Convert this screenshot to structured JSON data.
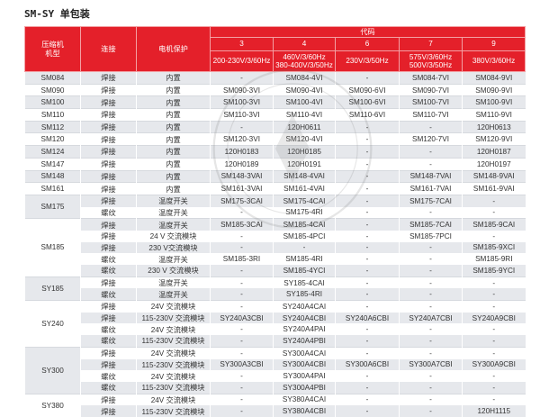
{
  "title": "SM-SY 单包装",
  "header": {
    "model": "压缩机\n机型",
    "connection": "连接",
    "motor_protection": "电机保护",
    "code": "代码",
    "code_columns": [
      {
        "code": "3",
        "voltage": "200-230V/3/60Hz"
      },
      {
        "code": "4",
        "voltage": "460V/3/60Hz\n380-400V/3/50Hz"
      },
      {
        "code": "6",
        "voltage": "230V/3/50Hz"
      },
      {
        "code": "7",
        "voltage": "575V/3/60Hz\n500V/3/50Hz"
      },
      {
        "code": "9",
        "voltage": "380V/3/60Hz"
      }
    ]
  },
  "groups": [
    {
      "model": "SM084",
      "rows": [
        [
          "焊接",
          "内置",
          "-",
          "SM084-4VI",
          "-",
          "SM084-7VI",
          "SM084-9VI"
        ]
      ]
    },
    {
      "model": "SM090",
      "rows": [
        [
          "焊接",
          "内置",
          "SM090-3VI",
          "SM090-4VI",
          "SM090-6VI",
          "SM090-7VI",
          "SM090-9VI"
        ]
      ]
    },
    {
      "model": "SM100",
      "rows": [
        [
          "焊接",
          "内置",
          "SM100-3VI",
          "SM100-4VI",
          "SM100-6VI",
          "SM100-7VI",
          "SM100-9VI"
        ]
      ]
    },
    {
      "model": "SM110",
      "rows": [
        [
          "焊接",
          "内置",
          "SM110-3VI",
          "SM110-4VI",
          "SM110-6VI",
          "SM110-7VI",
          "SM110-9VI"
        ]
      ]
    },
    {
      "model": "SM112",
      "rows": [
        [
          "焊接",
          "内置",
          "-",
          "120H0611",
          "-",
          "-",
          "120H0613"
        ]
      ]
    },
    {
      "model": "SM120",
      "rows": [
        [
          "焊接",
          "内置",
          "SM120-3VI",
          "SM120-4VI",
          "-",
          "SM120-7VI",
          "SM120-9VI"
        ]
      ]
    },
    {
      "model": "SM124",
      "rows": [
        [
          "焊接",
          "内置",
          "120H0183",
          "120H0185",
          "-",
          "-",
          "120H0187"
        ]
      ]
    },
    {
      "model": "SM147",
      "rows": [
        [
          "焊接",
          "内置",
          "120H0189",
          "120H0191",
          "-",
          "-",
          "120H0197"
        ]
      ]
    },
    {
      "model": "SM148",
      "rows": [
        [
          "焊接",
          "内置",
          "SM148-3VAI",
          "SM148-4VAI",
          "-",
          "SM148-7VAI",
          "SM148-9VAI"
        ]
      ]
    },
    {
      "model": "SM161",
      "rows": [
        [
          "焊接",
          "内置",
          "SM161-3VAI",
          "SM161-4VAI",
          "-",
          "SM161-7VAI",
          "SM161-9VAI"
        ]
      ]
    },
    {
      "model": "SM175",
      "rows": [
        [
          "焊接",
          "温度开关",
          "SM175-3CAI",
          "SM175-4CAI",
          "-",
          "SM175-7CAI",
          "-"
        ],
        [
          "螺纹",
          "温度开关",
          "-",
          "SM175-4RI",
          "-",
          "-",
          "-"
        ]
      ]
    },
    {
      "model": "SM185",
      "rows": [
        [
          "焊接",
          "温度开关",
          "SM185-3CAI",
          "SM185-4CAI",
          "-",
          "SM185-7CAI",
          "SM185-9CAI"
        ],
        [
          "焊接",
          "24 V 交流模块",
          "-",
          "SM185-4PCI",
          "-",
          "SM185-7PCI",
          "-"
        ],
        [
          "焊接",
          "230 V交流模块",
          "-",
          "-",
          "-",
          "-",
          "SM185-9XCI"
        ],
        [
          "螺纹",
          "温度开关",
          "SM185-3RI",
          "SM185-4RI",
          "-",
          "-",
          "SM185-9RI"
        ],
        [
          "螺纹",
          "230 V 交流模块",
          "-",
          "SM185-4YCI",
          "-",
          "-",
          "SM185-9YCI"
        ]
      ]
    },
    {
      "model": "SY185",
      "rows": [
        [
          "焊接",
          "温度开关",
          "-",
          "SY185-4CAI",
          "-",
          "-",
          "-"
        ],
        [
          "螺纹",
          "温度开关",
          "-",
          "SY185-4RI",
          "-",
          "-",
          "-"
        ]
      ]
    },
    {
      "model": "SY240",
      "rows": [
        [
          "焊接",
          "24V 交流模块",
          "-",
          "SY240A4CAI",
          "-",
          "-",
          "-"
        ],
        [
          "焊接",
          "115-230V 交流模块",
          "SY240A3CBI",
          "SY240A4CBI",
          "SY240A6CBI",
          "SY240A7CBI",
          "SY240A9CBI"
        ],
        [
          "螺纹",
          "24V 交流模块",
          "-",
          "SY240A4PAI",
          "-",
          "-",
          "-"
        ],
        [
          "螺纹",
          "115-230V 交流模块",
          "-",
          "SY240A4PBI",
          "-",
          "-",
          "-"
        ]
      ]
    },
    {
      "model": "SY300",
      "rows": [
        [
          "焊接",
          "24V 交流模块",
          "-",
          "SY300A4CAI",
          "-",
          "-",
          "-"
        ],
        [
          "焊接",
          "115-230V 交流模块",
          "SY300A3CBI",
          "SY300A4CBI",
          "SY300A6CBI",
          "SY300A7CBI",
          "SY300A9CBI"
        ],
        [
          "螺纹",
          "24V 交流模块",
          "-",
          "SY300A4PAI",
          "-",
          "-",
          "-"
        ],
        [
          "螺纹",
          "115-230V 交流模块",
          "-",
          "SY300A4PBI",
          "-",
          "-",
          "-"
        ]
      ]
    },
    {
      "model": "SY380",
      "rows": [
        [
          "焊接",
          "24V 交流模块",
          "-",
          "SY380A4CAI",
          "-",
          "-",
          "-"
        ],
        [
          "焊接",
          "115-230V 交流模块",
          "-",
          "SY380A4CBI",
          "-",
          "-",
          "120H1115"
        ]
      ]
    }
  ],
  "colors": {
    "header_bg": "#e4202a",
    "stripe": "#e6e8ec"
  }
}
